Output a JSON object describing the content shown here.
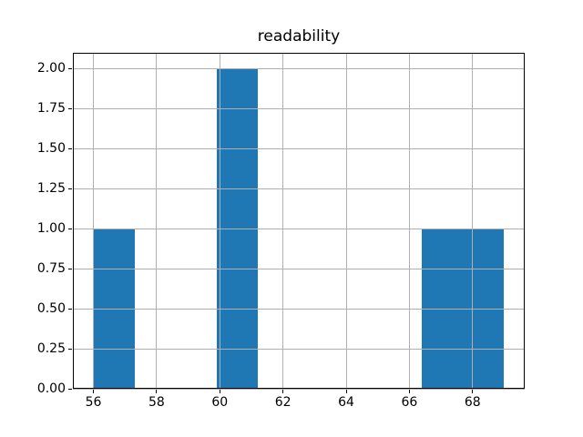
{
  "chart_data": {
    "type": "bar",
    "subtype": "histogram",
    "title": "readability",
    "xlabel": "",
    "ylabel": "",
    "bin_edges": [
      56.0,
      57.3,
      58.6,
      59.9,
      61.2,
      62.5,
      63.8,
      65.1,
      66.4,
      67.7,
      69.0
    ],
    "counts": [
      1,
      0,
      0,
      2,
      0,
      0,
      0,
      0,
      1,
      1
    ],
    "xlim": [
      55.35,
      69.65
    ],
    "ylim": [
      0,
      2.1
    ],
    "xticks": [
      56,
      58,
      60,
      62,
      64,
      66,
      68
    ],
    "xtick_labels": [
      "56",
      "58",
      "60",
      "62",
      "64",
      "66",
      "68"
    ],
    "yticks": [
      0,
      0.25,
      0.5,
      0.75,
      1.0,
      1.25,
      1.5,
      1.75,
      2.0
    ],
    "ytick_labels": [
      "0.00",
      "0.25",
      "0.50",
      "0.75",
      "1.00",
      "1.25",
      "1.50",
      "1.75",
      "2.00"
    ],
    "grid": true,
    "grid_above_bars": true,
    "legend": null,
    "colors": {
      "bar": "#1f77b4",
      "grid": "#b0b0b0",
      "spine": "#000000",
      "text": "#000000",
      "background": "#ffffff"
    }
  }
}
